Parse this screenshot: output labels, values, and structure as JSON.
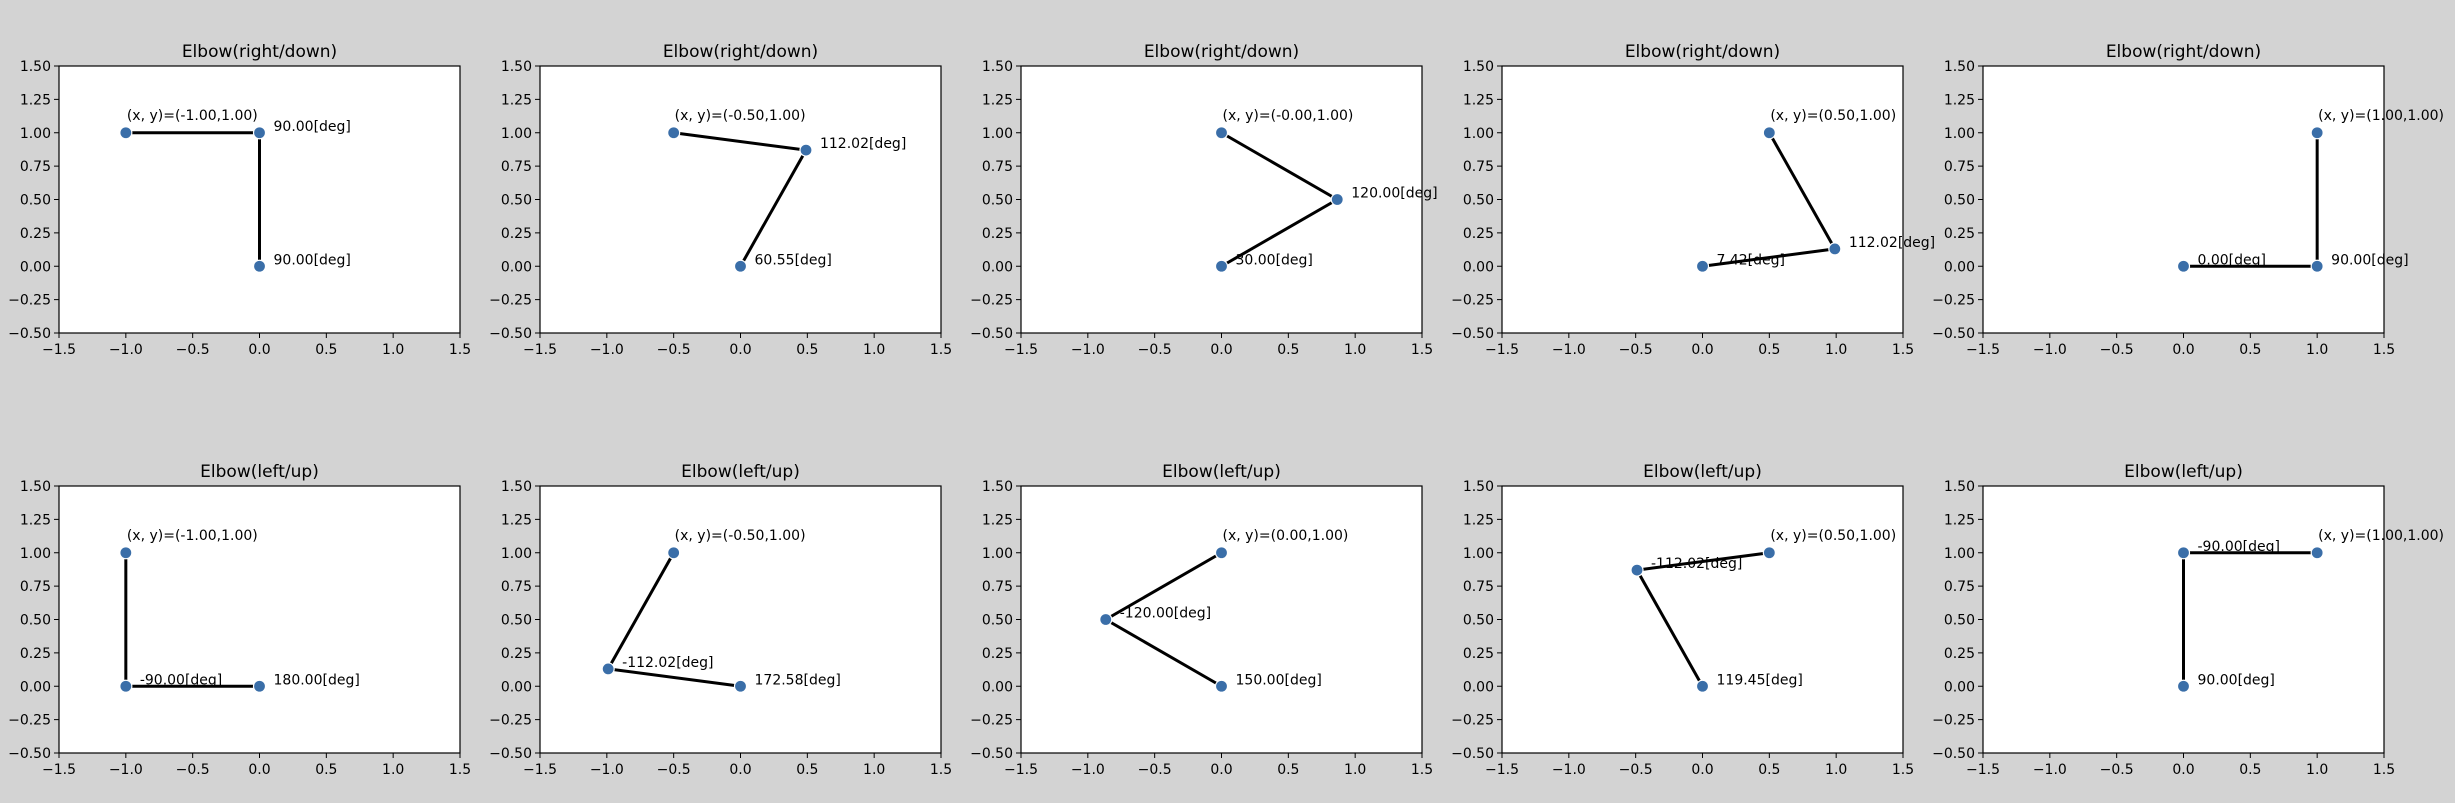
{
  "background": "#d3d3d3",
  "point_color": "#3a6ea8",
  "chart_data": [
    {
      "type": "line",
      "title": "Elbow(right/down)",
      "xlim": [
        -1.5,
        1.5
      ],
      "ylim": [
        -0.5,
        1.5
      ],
      "grid": false,
      "x_ticks": [
        "−1.5",
        "−1.0",
        "−0.5",
        "0.0",
        "0.5",
        "1.0",
        "1.5"
      ],
      "y_ticks": [
        "−0.50",
        "−0.25",
        "0.00",
        "0.25",
        "0.50",
        "0.75",
        "1.00",
        "1.25",
        "1.50"
      ],
      "points": [
        [
          0,
          0
        ],
        [
          0,
          1
        ],
        [
          -1,
          1
        ]
      ],
      "annotations": [
        {
          "text": "90.00[deg]",
          "x": 0,
          "y": 0
        },
        {
          "text": "90.00[deg]",
          "x": 0,
          "y": 1
        },
        {
          "text": "(x, y)=(-1.00,1.00)",
          "x": -1,
          "y": 1
        }
      ]
    },
    {
      "type": "line",
      "title": "Elbow(right/down)",
      "xlim": [
        -1.5,
        1.5
      ],
      "ylim": [
        -0.5,
        1.5
      ],
      "grid": false,
      "x_ticks": [
        "−1.5",
        "−1.0",
        "−0.5",
        "0.0",
        "0.5",
        "1.0",
        "1.5"
      ],
      "y_ticks": [
        "−0.50",
        "−0.25",
        "0.00",
        "0.25",
        "0.50",
        "0.75",
        "1.00",
        "1.25",
        "1.50"
      ],
      "points": [
        [
          0,
          0
        ],
        [
          0.49,
          0.87
        ],
        [
          -0.5,
          1
        ]
      ],
      "annotations": [
        {
          "text": "60.55[deg]",
          "x": 0,
          "y": 0
        },
        {
          "text": "112.02[deg]",
          "x": 0.49,
          "y": 0.87
        },
        {
          "text": "(x, y)=(-0.50,1.00)",
          "x": -0.5,
          "y": 1
        }
      ]
    },
    {
      "type": "line",
      "title": "Elbow(right/down)",
      "xlim": [
        -1.5,
        1.5
      ],
      "ylim": [
        -0.5,
        1.5
      ],
      "grid": false,
      "x_ticks": [
        "−1.5",
        "−1.0",
        "−0.5",
        "0.0",
        "0.5",
        "1.0",
        "1.5"
      ],
      "y_ticks": [
        "−0.50",
        "−0.25",
        "0.00",
        "0.25",
        "0.50",
        "0.75",
        "1.00",
        "1.25",
        "1.50"
      ],
      "points": [
        [
          0,
          0
        ],
        [
          0.866,
          0.5
        ],
        [
          0,
          1
        ]
      ],
      "annotations": [
        {
          "text": "30.00[deg]",
          "x": 0,
          "y": 0
        },
        {
          "text": "120.00[deg]",
          "x": 0.866,
          "y": 0.5
        },
        {
          "text": "(x, y)=(-0.00,1.00)",
          "x": 0,
          "y": 1
        }
      ]
    },
    {
      "type": "line",
      "title": "Elbow(right/down)",
      "xlim": [
        -1.5,
        1.5
      ],
      "ylim": [
        -0.5,
        1.5
      ],
      "grid": false,
      "x_ticks": [
        "−1.5",
        "−1.0",
        "−0.5",
        "0.0",
        "0.5",
        "1.0",
        "1.5"
      ],
      "y_ticks": [
        "−0.50",
        "−0.25",
        "0.00",
        "0.25",
        "0.50",
        "0.75",
        "1.00",
        "1.25",
        "1.50"
      ],
      "points": [
        [
          0,
          0
        ],
        [
          0.99,
          0.13
        ],
        [
          0.5,
          1
        ]
      ],
      "annotations": [
        {
          "text": "7.42[deg]",
          "x": 0,
          "y": 0
        },
        {
          "text": "112.02[deg]",
          "x": 0.99,
          "y": 0.13
        },
        {
          "text": "(x, y)=(0.50,1.00)",
          "x": 0.5,
          "y": 1
        }
      ]
    },
    {
      "type": "line",
      "title": "Elbow(right/down)",
      "xlim": [
        -1.5,
        1.5
      ],
      "ylim": [
        -0.5,
        1.5
      ],
      "grid": false,
      "x_ticks": [
        "−1.5",
        "−1.0",
        "−0.5",
        "0.0",
        "0.5",
        "1.0",
        "1.5"
      ],
      "y_ticks": [
        "−0.50",
        "−0.25",
        "0.00",
        "0.25",
        "0.50",
        "0.75",
        "1.00",
        "1.25",
        "1.50"
      ],
      "points": [
        [
          0,
          0
        ],
        [
          1,
          0
        ],
        [
          1,
          1
        ]
      ],
      "annotations": [
        {
          "text": "0.00[deg]",
          "x": 0,
          "y": 0
        },
        {
          "text": "90.00[deg]",
          "x": 1,
          "y": 0
        },
        {
          "text": "(x, y)=(1.00,1.00)",
          "x": 1,
          "y": 1
        }
      ]
    },
    {
      "type": "line",
      "title": "Elbow(left/up)",
      "xlim": [
        -1.5,
        1.5
      ],
      "ylim": [
        -0.5,
        1.5
      ],
      "grid": false,
      "x_ticks": [
        "−1.5",
        "−1.0",
        "−0.5",
        "0.0",
        "0.5",
        "1.0",
        "1.5"
      ],
      "y_ticks": [
        "−0.50",
        "−0.25",
        "0.00",
        "0.25",
        "0.50",
        "0.75",
        "1.00",
        "1.25",
        "1.50"
      ],
      "points": [
        [
          0,
          0
        ],
        [
          -1,
          0
        ],
        [
          -1,
          1
        ]
      ],
      "annotations": [
        {
          "text": "180.00[deg]",
          "x": 0,
          "y": 0
        },
        {
          "text": "-90.00[deg]",
          "x": -1,
          "y": 0
        },
        {
          "text": "(x, y)=(-1.00,1.00)",
          "x": -1,
          "y": 1
        }
      ]
    },
    {
      "type": "line",
      "title": "Elbow(left/up)",
      "xlim": [
        -1.5,
        1.5
      ],
      "ylim": [
        -0.5,
        1.5
      ],
      "grid": false,
      "x_ticks": [
        "−1.5",
        "−1.0",
        "−0.5",
        "0.0",
        "0.5",
        "1.0",
        "1.5"
      ],
      "y_ticks": [
        "−0.50",
        "−0.25",
        "0.00",
        "0.25",
        "0.50",
        "0.75",
        "1.00",
        "1.25",
        "1.50"
      ],
      "points": [
        [
          0,
          0
        ],
        [
          -0.99,
          0.13
        ],
        [
          -0.5,
          1
        ]
      ],
      "annotations": [
        {
          "text": "172.58[deg]",
          "x": 0,
          "y": 0
        },
        {
          "text": "-112.02[deg]",
          "x": -0.99,
          "y": 0.13
        },
        {
          "text": "(x, y)=(-0.50,1.00)",
          "x": -0.5,
          "y": 1
        }
      ]
    },
    {
      "type": "line",
      "title": "Elbow(left/up)",
      "xlim": [
        -1.5,
        1.5
      ],
      "ylim": [
        -0.5,
        1.5
      ],
      "grid": false,
      "x_ticks": [
        "−1.5",
        "−1.0",
        "−0.5",
        "0.0",
        "0.5",
        "1.0",
        "1.5"
      ],
      "y_ticks": [
        "−0.50",
        "−0.25",
        "0.00",
        "0.25",
        "0.50",
        "0.75",
        "1.00",
        "1.25",
        "1.50"
      ],
      "points": [
        [
          0,
          0
        ],
        [
          -0.866,
          0.5
        ],
        [
          0,
          1
        ]
      ],
      "annotations": [
        {
          "text": "150.00[deg]",
          "x": 0,
          "y": 0
        },
        {
          "text": "-120.00[deg]",
          "x": -0.866,
          "y": 0.5
        },
        {
          "text": "(x, y)=(0.00,1.00)",
          "x": 0,
          "y": 1
        }
      ]
    },
    {
      "type": "line",
      "title": "Elbow(left/up)",
      "xlim": [
        -1.5,
        1.5
      ],
      "ylim": [
        -0.5,
        1.5
      ],
      "grid": false,
      "x_ticks": [
        "−1.5",
        "−1.0",
        "−0.5",
        "0.0",
        "0.5",
        "1.0",
        "1.5"
      ],
      "y_ticks": [
        "−0.50",
        "−0.25",
        "0.00",
        "0.25",
        "0.50",
        "0.75",
        "1.00",
        "1.25",
        "1.50"
      ],
      "points": [
        [
          0,
          0
        ],
        [
          -0.49,
          0.87
        ],
        [
          0.5,
          1
        ]
      ],
      "annotations": [
        {
          "text": "119.45[deg]",
          "x": 0,
          "y": 0
        },
        {
          "text": "-112.02[deg]",
          "x": -0.49,
          "y": 0.87
        },
        {
          "text": "(x, y)=(0.50,1.00)",
          "x": 0.5,
          "y": 1
        }
      ]
    },
    {
      "type": "line",
      "title": "Elbow(left/up)",
      "xlim": [
        -1.5,
        1.5
      ],
      "ylim": [
        -0.5,
        1.5
      ],
      "grid": false,
      "x_ticks": [
        "−1.5",
        "−1.0",
        "−0.5",
        "0.0",
        "0.5",
        "1.0",
        "1.5"
      ],
      "y_ticks": [
        "−0.50",
        "−0.25",
        "0.00",
        "0.25",
        "0.50",
        "0.75",
        "1.00",
        "1.25",
        "1.50"
      ],
      "points": [
        [
          0,
          0
        ],
        [
          0,
          1
        ],
        [
          1,
          1
        ]
      ],
      "annotations": [
        {
          "text": "90.00[deg]",
          "x": 0,
          "y": 0
        },
        {
          "text": "-90.00[deg]",
          "x": 0,
          "y": 1
        },
        {
          "text": "(x, y)=(1.00,1.00)",
          "x": 1,
          "y": 1
        }
      ]
    }
  ]
}
